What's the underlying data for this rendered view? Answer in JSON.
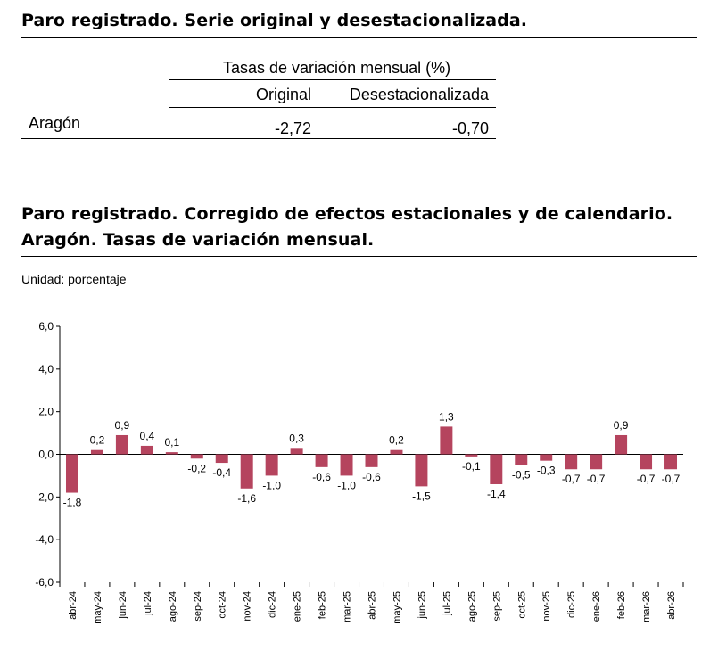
{
  "table": {
    "title": "Paro registrado. Serie original y desestacionalizada.",
    "group_header": "Tasas de variación mensual (%)",
    "col_headers": [
      "Original",
      "Desestacionalizada"
    ],
    "row": {
      "label": "Aragón",
      "original": "-2,72",
      "desestacionalizada": "-0,70"
    }
  },
  "chart_section": {
    "title_line1": "Paro registrado. Corregido de efectos estacionales y de calendario.",
    "title_line2": "Aragón. Tasas de variación mensual.",
    "unit": "Unidad: porcentaje"
  },
  "chart_data": {
    "type": "bar",
    "categories": [
      "abr-24",
      "may-24",
      "jun-24",
      "jul-24",
      "ago-24",
      "sep-24",
      "oct-24",
      "nov-24",
      "dic-24",
      "ene-25",
      "feb-25",
      "mar-25",
      "abr-25",
      "may-25",
      "jun-25",
      "jul-25",
      "ago-25",
      "sep-25",
      "oct-25",
      "nov-25",
      "dic-25",
      "ene-26",
      "feb-26",
      "mar-26",
      "abr-26"
    ],
    "values": [
      -1.8,
      0.2,
      0.9,
      0.4,
      0.1,
      -0.2,
      -0.4,
      -1.6,
      -1.0,
      0.3,
      -0.6,
      -1.0,
      -0.6,
      0.2,
      -1.5,
      1.3,
      -0.1,
      -1.4,
      -0.5,
      -0.3,
      -0.7,
      -0.7,
      0.9,
      -0.7,
      -0.7
    ],
    "data_labels": [
      "-1,8",
      "0,2",
      "0,9",
      "0,4",
      "0,1",
      "-0,2",
      "-0,4",
      "-1,6",
      "-1,0",
      "0,3",
      "-0,6",
      "-1,0",
      "-0,6",
      "0,2",
      "-1,5",
      "1,3",
      "-0,1",
      "-1,4",
      "-0,5",
      "-0,3",
      "-0,7",
      "-0,7",
      "0,9",
      "-0,7",
      "-0,7"
    ],
    "yticks": [
      6,
      4,
      2,
      0,
      -2,
      -4,
      -6
    ],
    "ytick_labels": [
      "6,0",
      "4,0",
      "2,0",
      "0,0",
      "-2,0",
      "-4,0",
      "-6,0"
    ],
    "ylim": [
      -6,
      6
    ],
    "bar_color": "#B5445E",
    "grid": false,
    "legend": "none"
  }
}
